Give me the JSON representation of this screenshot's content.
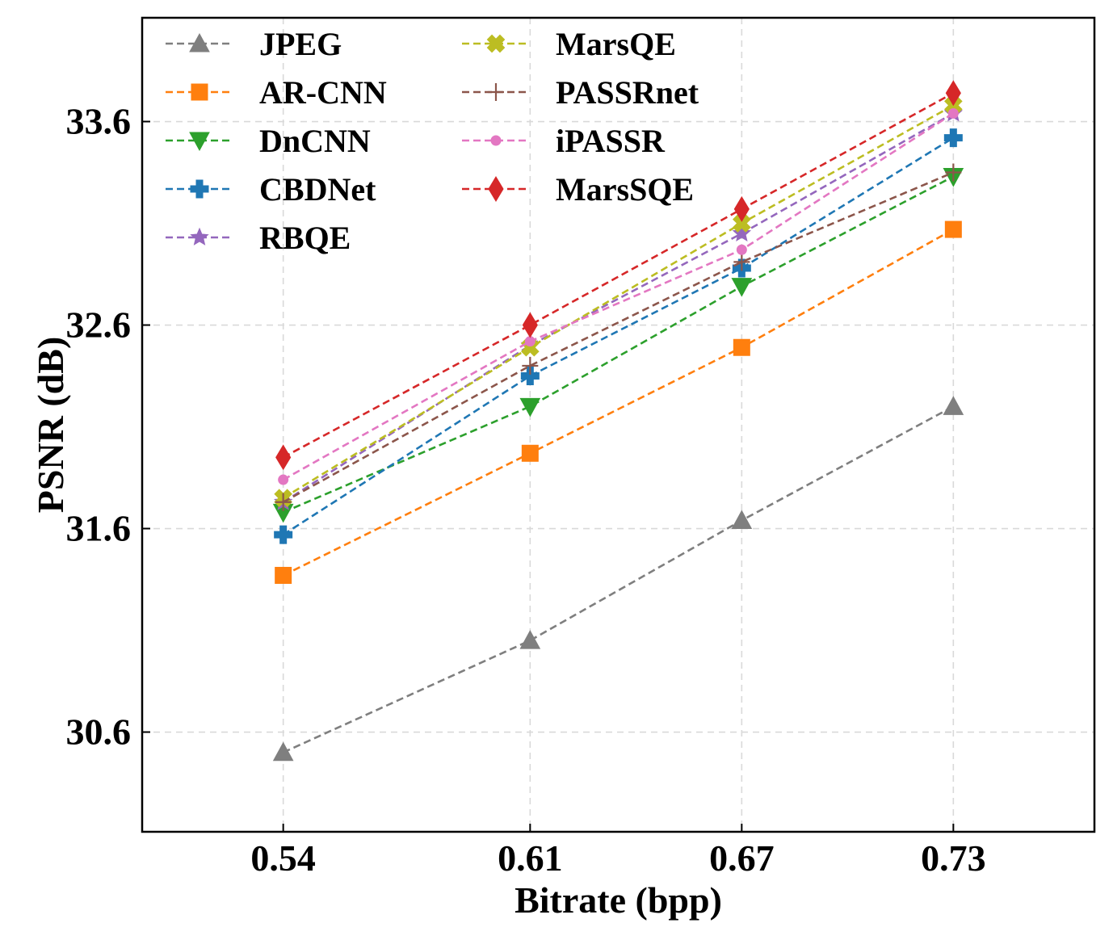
{
  "chart_data": {
    "type": "line",
    "title": "",
    "xlabel": "Bitrate (bpp)",
    "ylabel": "PSNR (dB)",
    "categories": [
      "0.54",
      "0.61",
      "0.67",
      "0.73"
    ],
    "x": [
      0.54,
      0.61,
      0.67,
      0.73
    ],
    "xlim": [
      0.5,
      0.77
    ],
    "ylim": [
      30.11,
      34.11
    ],
    "yticks": [
      30.6,
      31.6,
      32.6,
      33.6
    ],
    "ytick_labels": [
      "30.6",
      "31.6",
      "32.6",
      "33.6"
    ],
    "grid": true,
    "legend_position": "top-left",
    "line_style": "dashed",
    "series": [
      {
        "name": "JPEG",
        "color": "#7f7f7f",
        "marker": "triangle-up",
        "values": [
          30.5,
          31.05,
          31.64,
          32.2
        ]
      },
      {
        "name": "AR-CNN",
        "color": "#ff7f0e",
        "marker": "square",
        "values": [
          31.37,
          31.97,
          32.49,
          33.07
        ]
      },
      {
        "name": "DnCNN",
        "color": "#2ca02c",
        "marker": "triangle-down",
        "values": [
          31.68,
          32.2,
          32.79,
          33.33
        ]
      },
      {
        "name": "CBDNet",
        "color": "#1f77b4",
        "marker": "plus",
        "values": [
          31.57,
          32.35,
          32.88,
          33.52
        ]
      },
      {
        "name": "RBQE",
        "color": "#9467bd",
        "marker": "star",
        "values": [
          31.73,
          32.5,
          33.05,
          33.64
        ]
      },
      {
        "name": "MarsQE",
        "color": "#bcbd22",
        "marker": "x-filled",
        "values": [
          31.75,
          32.49,
          33.1,
          33.68
        ]
      },
      {
        "name": "PASSRnet",
        "color": "#8c564b",
        "marker": "thin-plus",
        "values": [
          31.73,
          32.4,
          32.91,
          33.35
        ]
      },
      {
        "name": "iPASSR",
        "color": "#e377c2",
        "marker": "circle",
        "values": [
          31.84,
          32.52,
          32.97,
          33.64
        ]
      },
      {
        "name": "MarsSQE",
        "color": "#d62728",
        "marker": "diamond",
        "values": [
          31.95,
          32.6,
          33.17,
          33.74
        ]
      }
    ]
  }
}
